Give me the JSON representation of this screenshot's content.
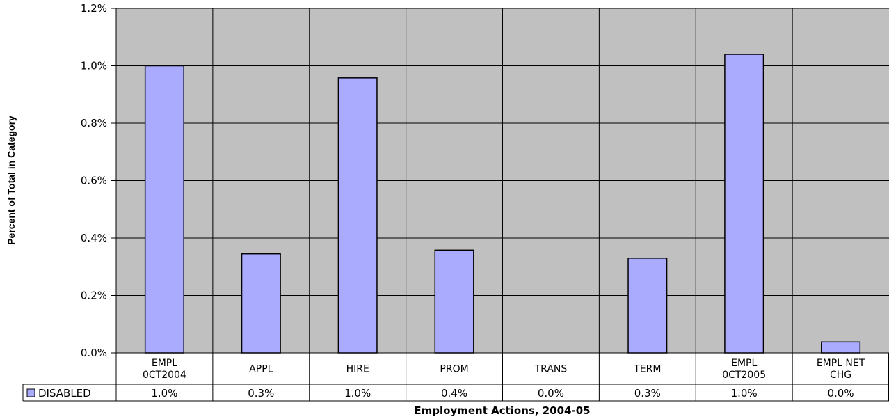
{
  "chart_data": {
    "type": "bar",
    "title": "",
    "xlabel": "Employment Actions, 2004-05",
    "ylabel": "Percent of Total in Category",
    "ylim": [
      0,
      1.2
    ],
    "yticks": [
      "0.0%",
      "0.2%",
      "0.4%",
      "0.6%",
      "0.8%",
      "1.0%",
      "1.2%"
    ],
    "categories": [
      [
        "EMPL",
        "0CT2004"
      ],
      [
        "APPL"
      ],
      [
        "HIRE"
      ],
      [
        "PROM"
      ],
      [
        "TRANS"
      ],
      [
        "TERM"
      ],
      [
        "EMPL",
        "0CT2005"
      ],
      [
        "EMPL NET",
        "CHG"
      ]
    ],
    "series": [
      {
        "name": "DISABLED",
        "values": [
          1.0,
          0.345,
          0.958,
          0.358,
          0.0,
          0.33,
          1.04,
          0.038
        ],
        "labels": [
          "1.0%",
          "0.3%",
          "1.0%",
          "0.4%",
          "0.0%",
          "0.3%",
          "1.0%",
          "0.0%"
        ],
        "color": "#aaaaff"
      }
    ],
    "grid": true,
    "legend": "data-table-left",
    "plot_background": "#c0c0c0",
    "grid_color": "#000000"
  }
}
